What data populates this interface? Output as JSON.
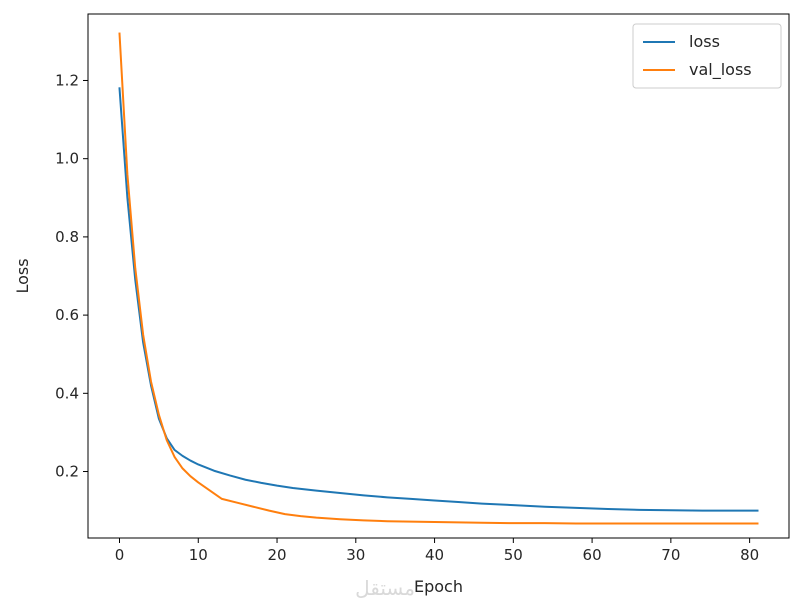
{
  "chart_data": {
    "type": "line",
    "title": "",
    "xlabel": "Epoch",
    "ylabel": "Loss",
    "xlim": [
      -4,
      85
    ],
    "ylim": [
      0.03,
      1.37
    ],
    "xticks": [
      0,
      10,
      20,
      30,
      40,
      50,
      60,
      70,
      80
    ],
    "yticks": [
      0.2,
      0.4,
      0.6,
      0.8,
      1.0,
      1.2
    ],
    "ytick_labels": [
      "0.2",
      "0.4",
      "0.6",
      "0.8",
      "1.0",
      "1.2"
    ],
    "grid": false,
    "legend_position": "top-right",
    "series": [
      {
        "name": "loss",
        "color": "#1f77b4",
        "x": [
          0,
          1,
          2,
          3,
          4,
          5,
          6,
          7,
          8,
          9,
          10,
          12,
          14,
          16,
          18,
          20,
          22,
          25,
          28,
          31,
          34,
          37,
          40,
          43,
          46,
          50,
          54,
          58,
          62,
          66,
          70,
          74,
          78,
          81
        ],
        "y": [
          1.18,
          0.9,
          0.69,
          0.53,
          0.42,
          0.335,
          0.285,
          0.255,
          0.24,
          0.228,
          0.218,
          0.202,
          0.19,
          0.179,
          0.171,
          0.164,
          0.158,
          0.151,
          0.145,
          0.139,
          0.134,
          0.13,
          0.126,
          0.122,
          0.118,
          0.114,
          0.11,
          0.107,
          0.104,
          0.102,
          0.101,
          0.1,
          0.1,
          0.1
        ]
      },
      {
        "name": "val_loss",
        "color": "#ff7f0e",
        "x": [
          0,
          1,
          2,
          3,
          4,
          5,
          6,
          7,
          8,
          9,
          10,
          11,
          12,
          13,
          15,
          17,
          19,
          21,
          23,
          25,
          28,
          31,
          34,
          37,
          40,
          43,
          46,
          50,
          54,
          58,
          62,
          66,
          70,
          74,
          78,
          81
        ],
        "y": [
          1.32,
          0.96,
          0.72,
          0.55,
          0.43,
          0.345,
          0.28,
          0.237,
          0.208,
          0.188,
          0.172,
          0.158,
          0.144,
          0.13,
          0.12,
          0.11,
          0.1,
          0.091,
          0.086,
          0.082,
          0.078,
          0.075,
          0.073,
          0.072,
          0.071,
          0.07,
          0.069,
          0.068,
          0.068,
          0.067,
          0.067,
          0.067,
          0.067,
          0.067,
          0.067,
          0.067
        ]
      }
    ]
  },
  "watermark": {
    "text": "مستقل"
  }
}
